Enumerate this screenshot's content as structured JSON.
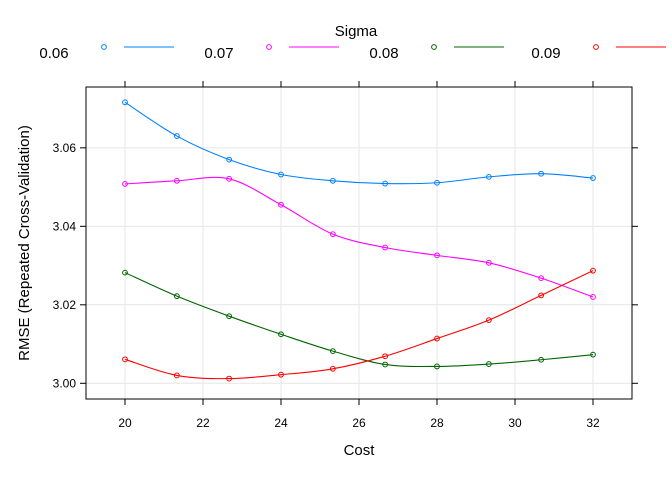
{
  "chart_data": {
    "type": "line",
    "title": "",
    "xlabel": "Cost",
    "ylabel": "RMSE (Repeated Cross-Validation)",
    "legend_title": "Sigma",
    "legend_position": "top",
    "grid": true,
    "xlim": [
      19.0,
      33.0
    ],
    "ylim": [
      2.996,
      3.0755
    ],
    "x_ticks": [
      20,
      22,
      24,
      26,
      28,
      30,
      32
    ],
    "y_ticks": [
      3.0,
      3.02,
      3.04,
      3.06
    ],
    "x_tick_labels": [
      "20",
      "22",
      "24",
      "26",
      "28",
      "30",
      "32"
    ],
    "y_tick_labels": [
      "3.00",
      "3.02",
      "3.04",
      "3.06"
    ],
    "x": [
      20,
      21.33,
      22.67,
      24,
      25.33,
      26.67,
      28,
      29.33,
      30.67,
      32
    ],
    "series": [
      {
        "name": "0.06",
        "color": "#0080ff",
        "values": [
          3.0716,
          3.063,
          3.057,
          3.0532,
          3.0516,
          3.0509,
          3.0511,
          3.0526,
          3.0534,
          3.0523
        ]
      },
      {
        "name": "0.07",
        "color": "#ff00ff",
        "values": [
          3.0508,
          3.0516,
          3.0521,
          3.0455,
          3.038,
          3.0346,
          3.0326,
          3.0307,
          3.0268,
          3.022
        ]
      },
      {
        "name": "0.08",
        "color": "#006400",
        "values": [
          3.0282,
          3.0222,
          3.0171,
          3.0125,
          3.0082,
          3.0048,
          3.0043,
          3.0049,
          3.006,
          3.0073
        ]
      },
      {
        "name": "0.09",
        "color": "#ff0000",
        "values": [
          3.0061,
          3.002,
          3.0012,
          3.0022,
          3.0037,
          3.0069,
          3.0114,
          3.0161,
          3.0224,
          3.0287
        ]
      }
    ]
  }
}
